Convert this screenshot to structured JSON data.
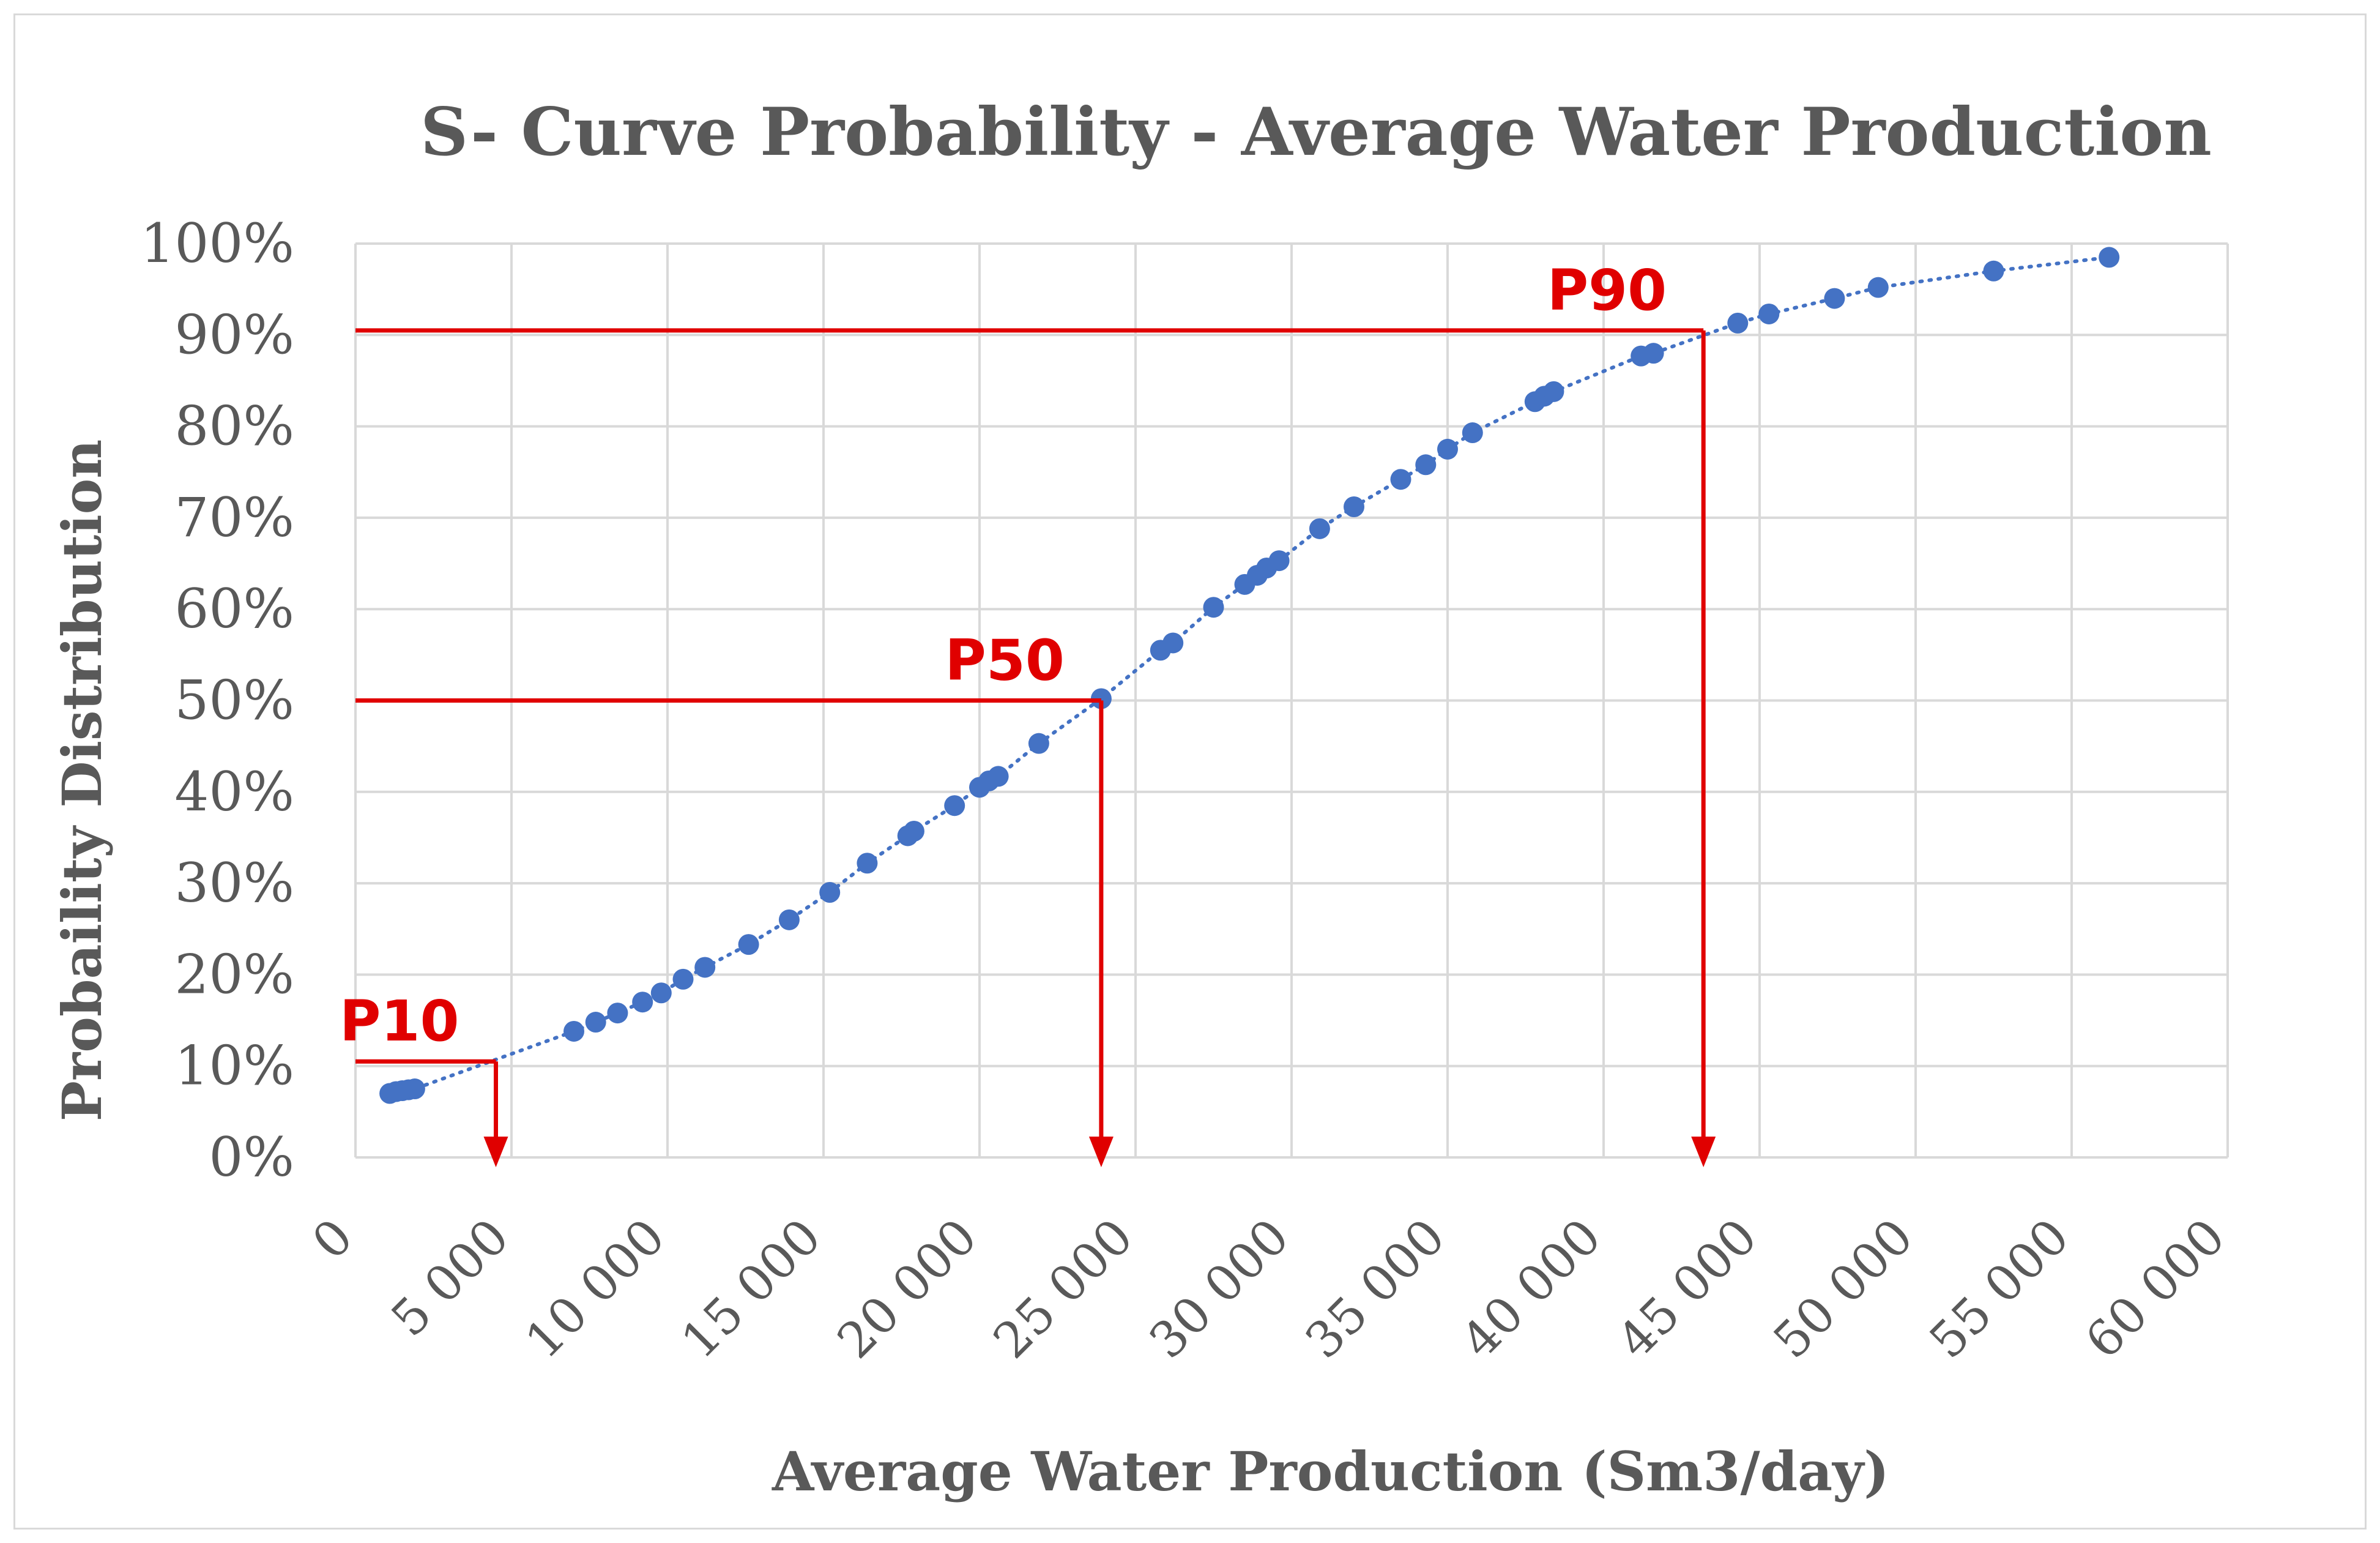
{
  "chart_data": {
    "type": "scatter",
    "title": "S- Curve Probability  - Average Water Production",
    "xlabel": "Average Water Production (Sm3/day)",
    "ylabel": "Probaility Distribution",
    "xlim": [
      0,
      60000
    ],
    "ylim": [
      0,
      1
    ],
    "x_ticks": [
      0,
      5000,
      10000,
      15000,
      20000,
      25000,
      30000,
      35000,
      40000,
      45000,
      50000,
      55000,
      60000
    ],
    "x_tick_labels": [
      "0",
      "5 000",
      "10 000",
      "15 000",
      "20 000",
      "25 000",
      "30 000",
      "35 000",
      "40 000",
      "45 000",
      "50 000",
      "55 000",
      "60 000"
    ],
    "y_ticks": [
      0,
      0.1,
      0.2,
      0.3,
      0.4,
      0.5,
      0.6,
      0.7,
      0.8,
      0.9,
      1.0
    ],
    "y_tick_labels": [
      "0%",
      "10%",
      "20%",
      "30%",
      "40%",
      "50%",
      "60%",
      "70%",
      "80%",
      "90%",
      "100%"
    ],
    "grid": true,
    "series": [
      {
        "name": "Average Water Production",
        "color": "#4472c4",
        "trendline": "dotted",
        "points": [
          [
            1100,
            0.07
          ],
          [
            1300,
            0.072
          ],
          [
            1500,
            0.073
          ],
          [
            1700,
            0.074
          ],
          [
            1900,
            0.075
          ],
          [
            7000,
            0.138
          ],
          [
            7700,
            0.148
          ],
          [
            8400,
            0.158
          ],
          [
            9200,
            0.17
          ],
          [
            9800,
            0.18
          ],
          [
            10500,
            0.195
          ],
          [
            11200,
            0.208
          ],
          [
            12600,
            0.233
          ],
          [
            13900,
            0.26
          ],
          [
            15200,
            0.29
          ],
          [
            16400,
            0.322
          ],
          [
            17700,
            0.352
          ],
          [
            17900,
            0.357
          ],
          [
            19200,
            0.385
          ],
          [
            20000,
            0.405
          ],
          [
            20300,
            0.412
          ],
          [
            20600,
            0.417
          ],
          [
            21900,
            0.453
          ],
          [
            23900,
            0.502
          ],
          [
            25800,
            0.555
          ],
          [
            26200,
            0.563
          ],
          [
            27500,
            0.602
          ],
          [
            28500,
            0.627
          ],
          [
            28900,
            0.637
          ],
          [
            29200,
            0.645
          ],
          [
            29600,
            0.653
          ],
          [
            30900,
            0.688
          ],
          [
            32000,
            0.712
          ],
          [
            33500,
            0.742
          ],
          [
            34300,
            0.758
          ],
          [
            35000,
            0.775
          ],
          [
            35800,
            0.793
          ],
          [
            37800,
            0.827
          ],
          [
            38100,
            0.833
          ],
          [
            38400,
            0.838
          ],
          [
            41200,
            0.877
          ],
          [
            41600,
            0.88
          ],
          [
            44300,
            0.913
          ],
          [
            45300,
            0.923
          ],
          [
            47400,
            0.94
          ],
          [
            48800,
            0.952
          ],
          [
            52500,
            0.97
          ],
          [
            56200,
            0.985
          ]
        ]
      }
    ],
    "annotations": [
      {
        "label": "P10",
        "x": 4500,
        "y": 0.105,
        "color": "#e00000"
      },
      {
        "label": "P50",
        "x": 23900,
        "y": 0.5,
        "color": "#e00000"
      },
      {
        "label": "P90",
        "x": 43200,
        "y": 0.905,
        "color": "#e00000"
      }
    ]
  }
}
